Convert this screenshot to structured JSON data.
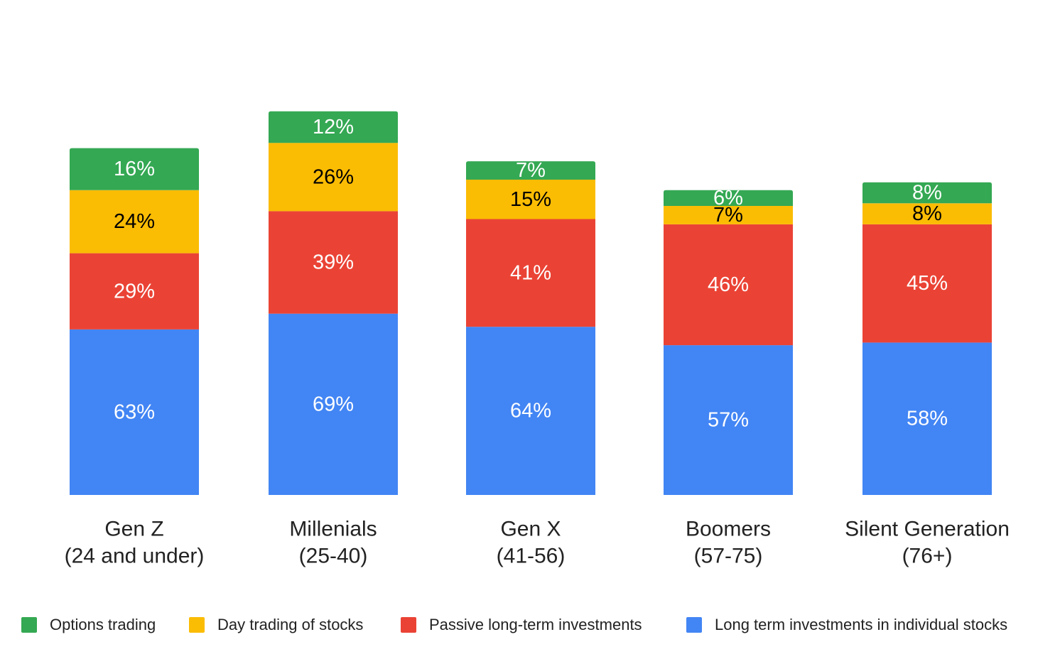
{
  "chart_data": {
    "type": "bar",
    "stacked": true,
    "categories": [
      [
        "Gen Z",
        "(24 and under)"
      ],
      [
        "Millenials",
        "(25-40)"
      ],
      [
        "Gen X",
        "(41-56)"
      ],
      [
        "Boomers",
        "(57-75)"
      ],
      [
        "Silent Generation",
        "(76+)"
      ]
    ],
    "series": [
      {
        "name": "Long term investments in individual stocks",
        "color": "#4285F4",
        "label_color": "#ffffff",
        "values": [
          63,
          69,
          64,
          57,
          58
        ]
      },
      {
        "name": "Passive long-term investments",
        "color": "#EA4335",
        "label_color": "#ffffff",
        "values": [
          29,
          39,
          41,
          46,
          45
        ]
      },
      {
        "name": "Day trading of stocks",
        "color": "#FBBC04",
        "label_color": "#000000",
        "values": [
          24,
          26,
          15,
          7,
          8
        ]
      },
      {
        "name": "Options trading",
        "color": "#34A853",
        "label_color": "#ffffff",
        "values": [
          16,
          12,
          7,
          6,
          8
        ]
      }
    ],
    "value_suffix": "%",
    "ylim": [
      0,
      146
    ],
    "grid": false,
    "legend": {
      "position": "bottom",
      "order": [
        "Options trading",
        "Day trading of stocks",
        "Passive long-term investments",
        "Long term investments in individual stocks"
      ]
    }
  }
}
